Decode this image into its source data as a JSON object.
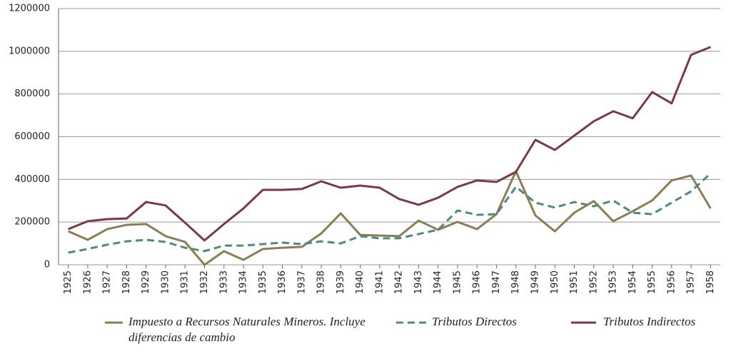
{
  "chart_data": {
    "type": "line",
    "categories": [
      "1925",
      "1926",
      "1927",
      "1928",
      "1929",
      "1930",
      "1931",
      "1932",
      "1933",
      "1934",
      "1935",
      "1936",
      "1937",
      "1938",
      "1939",
      "1940",
      "1941",
      "1942",
      "1943",
      "1944",
      "1945",
      "1946",
      "1947",
      "1948",
      "1949",
      "1950",
      "1951",
      "1952",
      "1953",
      "1954",
      "1955",
      "1956",
      "1957",
      "1958"
    ],
    "series": [
      {
        "name": "Impuesto a Recursos Naturales Mineros. Incluye diferencias de cambio",
        "color": "#8b7d55",
        "dashed": false,
        "values": [
          157000,
          117000,
          167000,
          187000,
          191000,
          134000,
          107000,
          0,
          64000,
          23000,
          74000,
          80000,
          84000,
          147000,
          241000,
          140000,
          137000,
          134000,
          207000,
          164000,
          201000,
          167000,
          237000,
          438000,
          231000,
          157000,
          244000,
          298000,
          204000,
          251000,
          301000,
          395000,
          418000,
          264000
        ]
      },
      {
        "name": "Tributos Directos",
        "color": "#4f8a7d",
        "dashed": true,
        "values": [
          57000,
          74000,
          94000,
          110000,
          117000,
          107000,
          80000,
          64000,
          90000,
          90000,
          97000,
          104000,
          97000,
          110000,
          100000,
          134000,
          124000,
          124000,
          144000,
          164000,
          254000,
          234000,
          237000,
          365000,
          291000,
          268000,
          294000,
          274000,
          301000,
          244000,
          237000,
          291000,
          344000,
          428000
        ]
      },
      {
        "name": "Tributos Indirectos",
        "color": "#7a3a44",
        "dashed": false,
        "values": [
          167000,
          204000,
          214000,
          217000,
          294000,
          278000,
          197000,
          114000,
          191000,
          264000,
          351000,
          351000,
          355000,
          391000,
          361000,
          371000,
          361000,
          308000,
          281000,
          314000,
          365000,
          395000,
          388000,
          435000,
          585000,
          538000,
          605000,
          672000,
          719000,
          686000,
          809000,
          756000,
          983000,
          1020000
        ]
      }
    ],
    "ylim": [
      0,
      1200000
    ],
    "yticks": [
      0,
      200000,
      400000,
      600000,
      800000,
      1000000,
      1200000
    ],
    "grid": true
  }
}
